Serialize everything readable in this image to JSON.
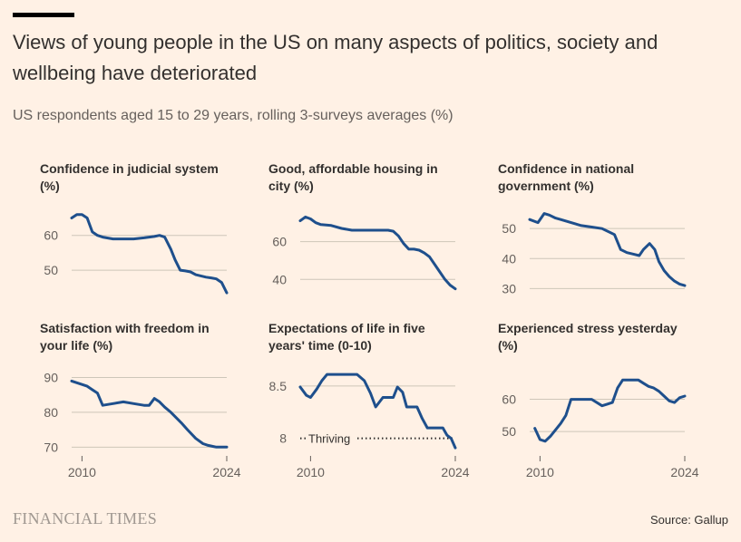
{
  "header": {
    "title": "Views of young people in the US on many aspects of politics, society and wellbeing have deteriorated",
    "subtitle": "US respondents aged 15 to 29 years, rolling 3-surveys averages (%)"
  },
  "footer": {
    "brand": "FINANCIAL TIMES",
    "source": "Source: Gallup"
  },
  "colors": {
    "background": "#fff1e5",
    "line": "#1e4f8c",
    "grid": "#cec6b9",
    "text": "#33302e"
  },
  "chart_data": [
    {
      "type": "line",
      "title": "Confidence in judicial system (%)",
      "xlim": [
        2009,
        2024
      ],
      "ylim": [
        43,
        68
      ],
      "yticks": [
        50,
        60
      ],
      "xticks": [],
      "x": [
        2009,
        2009.5,
        2010,
        2010.5,
        2011,
        2011.5,
        2012,
        2013,
        2014,
        2015,
        2016,
        2017,
        2017.5,
        2018,
        2018.6,
        2019,
        2019.5,
        2020,
        2020.5,
        2021,
        2022,
        2022.5,
        2023,
        2023.5,
        2024
      ],
      "values": [
        65,
        66,
        66,
        65,
        61,
        60,
        59.5,
        59,
        59,
        59,
        59.3,
        59.7,
        60,
        59.5,
        56,
        53,
        50,
        49.8,
        49.5,
        48.7,
        48,
        47.8,
        47.5,
        46.5,
        43.5
      ]
    },
    {
      "type": "line",
      "title": "Good, affordable housing in city (%)",
      "xlim": [
        2009,
        2024
      ],
      "ylim": [
        32,
        78
      ],
      "yticks": [
        40,
        60
      ],
      "xticks": [],
      "x": [
        2009,
        2009.5,
        2010,
        2010.5,
        2011,
        2012,
        2013,
        2014,
        2015,
        2016,
        2017,
        2017.5,
        2018,
        2018.5,
        2019,
        2019.5,
        2020,
        2020.5,
        2021,
        2021.5,
        2022,
        2022.5,
        2023,
        2023.5,
        2024
      ],
      "values": [
        71,
        73,
        72,
        70,
        69,
        68.5,
        67,
        66,
        66,
        66,
        66,
        66,
        65.5,
        63,
        59,
        56,
        56,
        55.5,
        54,
        52,
        48,
        44,
        40,
        37,
        35
      ]
    },
    {
      "type": "line",
      "title": "Confidence in national government (%)",
      "xlim": [
        2009,
        2024
      ],
      "ylim": [
        28,
        57
      ],
      "yticks": [
        30,
        40,
        50
      ],
      "xticks": [],
      "x": [
        2009,
        2009.8,
        2010.4,
        2010.9,
        2011.5,
        2012,
        2013,
        2014,
        2015,
        2016,
        2017.2,
        2017.8,
        2018.4,
        2019,
        2019.6,
        2020,
        2020.6,
        2021.1,
        2021.5,
        2022,
        2022.5,
        2023,
        2023.5,
        2024
      ],
      "values": [
        53,
        52,
        55,
        54.5,
        53.5,
        53,
        52,
        51,
        50.5,
        50,
        48,
        43,
        42,
        41.5,
        41,
        43,
        45,
        43,
        39,
        36,
        34,
        32.5,
        31.5,
        31
      ]
    },
    {
      "type": "line",
      "title": "Satisfaction with freedom in your life (%)",
      "xlim": [
        2009,
        2024
      ],
      "ylim": [
        68,
        93
      ],
      "yticks": [
        70,
        80,
        90
      ],
      "xticks": [
        "2010",
        "2024"
      ],
      "x": [
        2009,
        2010,
        2010.5,
        2011,
        2011.5,
        2012,
        2013,
        2014,
        2015,
        2016,
        2016.5,
        2017,
        2017.5,
        2018,
        2018.6,
        2019.1,
        2019.6,
        2020.2,
        2021,
        2021.7,
        2022.2,
        2022.7,
        2023,
        2023.5,
        2024
      ],
      "values": [
        89,
        88,
        87.5,
        86.5,
        85.5,
        82,
        82.5,
        83,
        82.5,
        82,
        82,
        84,
        83,
        81.5,
        80,
        78.5,
        77,
        75,
        72.5,
        71,
        70.5,
        70.2,
        70,
        70,
        70
      ]
    },
    {
      "type": "line",
      "title": "Expectations of life in five years' time (0-10)",
      "xlim": [
        2009,
        2024
      ],
      "ylim": [
        7.85,
        8.68
      ],
      "yticks": [
        8,
        8.5
      ],
      "xticks": [
        "2010",
        "2024"
      ],
      "annotation": "Thriving",
      "reference_line": 8,
      "x": [
        2009,
        2009.6,
        2010,
        2010.6,
        2011.1,
        2011.6,
        2012.2,
        2013,
        2014,
        2014.5,
        2015.2,
        2015.8,
        2016.3,
        2017,
        2017.5,
        2018,
        2018.4,
        2018.9,
        2019.3,
        2019.8,
        2020.3,
        2020.8,
        2021.3,
        2021.8,
        2022.3,
        2022.8,
        2023.2,
        2023.6,
        2024
      ],
      "values": [
        8.49,
        8.41,
        8.39,
        8.47,
        8.55,
        8.61,
        8.61,
        8.61,
        8.61,
        8.61,
        8.55,
        8.43,
        8.3,
        8.39,
        8.39,
        8.39,
        8.49,
        8.44,
        8.3,
        8.3,
        8.3,
        8.19,
        8.1,
        8.1,
        8.1,
        8.1,
        8.03,
        8.0,
        7.91
      ]
    },
    {
      "type": "line",
      "title": "Experienced stress yesterday (%)",
      "xlim": [
        2009,
        2024
      ],
      "ylim": [
        43,
        70
      ],
      "yticks": [
        50,
        60
      ],
      "xticks": [
        "2010",
        "2024"
      ],
      "x": [
        2009.5,
        2010,
        2010.5,
        2011,
        2011.5,
        2012,
        2012.5,
        2013,
        2013.5,
        2014,
        2015,
        2016,
        2016.5,
        2017,
        2017.5,
        2018,
        2018.5,
        2019,
        2019.5,
        2020,
        2020.5,
        2021,
        2021.5,
        2022,
        2022.5,
        2023,
        2023.5,
        2024
      ],
      "values": [
        51,
        47.5,
        47,
        48.5,
        50.5,
        52.5,
        55,
        60,
        60,
        60,
        60,
        58,
        58.5,
        59,
        63.5,
        66,
        66,
        66,
        66,
        65,
        64,
        63.5,
        62.5,
        61,
        59.5,
        59,
        60.5,
        61
      ]
    }
  ]
}
